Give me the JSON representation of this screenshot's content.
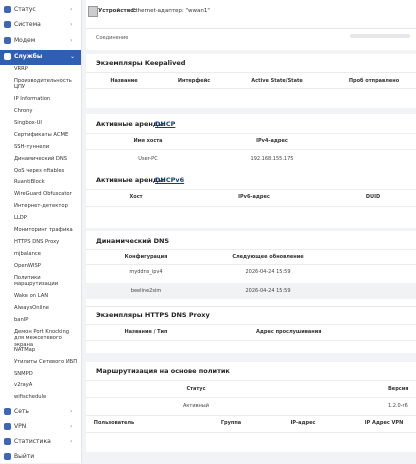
{
  "sidebar": {
    "top_menu": [
      "Статус",
      "Система",
      "Модем",
      "Службы"
    ],
    "submenu": [
      "VRRP",
      "Производительность ЦПУ",
      "IP Information",
      "Chrony",
      "Singbox-UI",
      "Сертификаты ACME",
      "SSH-туннели",
      "Динамический DNS",
      "QoS через nftables",
      "RuantiBlock",
      "WireGuard Obfuscator",
      "Интернет-детектор",
      "LLDP",
      "Мониторинг трафика",
      "HTTPS DNS Proxy",
      "mjbalance",
      "OpenWISP",
      "Политики маршрутизации",
      "Wake on LAN",
      "AlwaysOnline",
      "banIP",
      "Демон Port Knocking для межсетевого экрана",
      "NATMap",
      "Утилиты Сетевого ИБП",
      "SNMPD",
      "v2rayA",
      "wifischedule"
    ],
    "bottom_menu": [
      "Сеть",
      "VPN",
      "Статистика",
      "Выйти"
    ]
  },
  "device_card": {
    "device_label": "Устройство:",
    "device_value": "Ethernet-адаптер: \"wwan1\"",
    "connection_label": "Соединение"
  },
  "keepalived": {
    "title": "Экземпляры Keepalived",
    "columns": [
      "Название",
      "Интерфейс",
      "Active State/State",
      "Проб отправлено"
    ]
  },
  "dhcp": {
    "title": "Активные аренды",
    "title_link": "DHCP",
    "columns": [
      "Имя хоста",
      "IPv4-адрес"
    ],
    "rows": [
      [
        "User-PC",
        "192.168.155.175"
      ]
    ]
  },
  "dhcpv6": {
    "title": "Активные аренды",
    "title_link": "DHCPv6",
    "columns": [
      "Хост",
      "IPv6-адрес",
      "DUID"
    ]
  },
  "ddns": {
    "title": "Динамический DNS",
    "columns": [
      "Конфигурация",
      "Следующее обновление"
    ],
    "rows": [
      [
        "myddns_ipv4",
        "2026-04-24 15:59"
      ],
      [
        "beeline2sim",
        "2026-04-24 15:59"
      ]
    ]
  },
  "https_dns_proxy": {
    "title": "Экземпляры HTTPS DNS Proxy",
    "columns": [
      "Название / Тип",
      "Адрес прослушивания"
    ]
  },
  "pbr": {
    "title": "Маршрутизация на основе политик",
    "status_columns": [
      "Статус",
      "Версия"
    ],
    "status_row": [
      "Активный",
      "1.2.0-r6"
    ],
    "columns": [
      "Пользователь",
      "Группа",
      "IP-адрес",
      "IP Адрес VPN"
    ]
  }
}
